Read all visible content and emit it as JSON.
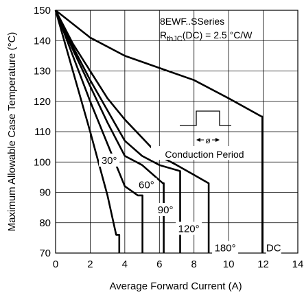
{
  "chart_data": {
    "type": "line",
    "xlabel": "Average Forward Current (A)",
    "ylabel": "Maximum Allowable Case Temperature (°C)",
    "xlim": [
      0,
      14
    ],
    "ylim": [
      70,
      150
    ],
    "x_ticks": [
      "0",
      "2",
      "4",
      "6",
      "8",
      "10",
      "12",
      "14"
    ],
    "y_ticks": [
      "70",
      "80",
      "90",
      "100",
      "110",
      "120",
      "130",
      "140",
      "150"
    ],
    "grid": true,
    "annotation": {
      "series_line": "8EWF..SSeries",
      "rth_symbol": "R",
      "rth_sub": "thJC",
      "rth_value": "(DC) = 2.5 °C/W",
      "conduction_label": "Conduction Period",
      "phi_symbol": "ø"
    },
    "series": [
      {
        "name": "30°",
        "points": [
          [
            0,
            150
          ],
          [
            1,
            130
          ],
          [
            2,
            110
          ],
          [
            3,
            89
          ],
          [
            3.5,
            76
          ],
          [
            3.68,
            76
          ],
          [
            3.68,
            70
          ]
        ]
      },
      {
        "name": "60°",
        "points": [
          [
            0,
            150
          ],
          [
            1,
            135
          ],
          [
            2,
            120
          ],
          [
            3,
            106
          ],
          [
            4,
            92
          ],
          [
            4.75,
            89
          ],
          [
            5.02,
            89
          ],
          [
            5.02,
            70
          ]
        ]
      },
      {
        "name": "90°",
        "points": [
          [
            0,
            150
          ],
          [
            1,
            137
          ],
          [
            2,
            125
          ],
          [
            3,
            113
          ],
          [
            4,
            102
          ],
          [
            5,
            99
          ],
          [
            6.2,
            93
          ],
          [
            6.25,
            93
          ],
          [
            6.25,
            70
          ]
        ]
      },
      {
        "name": "120°",
        "points": [
          [
            0,
            150
          ],
          [
            1,
            138
          ],
          [
            2,
            127
          ],
          [
            3,
            117
          ],
          [
            4,
            107
          ],
          [
            5,
            102
          ],
          [
            6,
            99
          ],
          [
            7.2,
            97
          ],
          [
            7.2,
            70
          ]
        ]
      },
      {
        "name": "180°",
        "points": [
          [
            0,
            150
          ],
          [
            1,
            139
          ],
          [
            2,
            130
          ],
          [
            3,
            121
          ],
          [
            4,
            114
          ],
          [
            5,
            108
          ],
          [
            6,
            102
          ],
          [
            7,
            99
          ],
          [
            8.85,
            93
          ],
          [
            8.85,
            70
          ]
        ]
      },
      {
        "name": "DC",
        "points": [
          [
            0,
            150
          ],
          [
            2,
            141
          ],
          [
            4,
            135
          ],
          [
            6,
            131
          ],
          [
            8,
            127
          ],
          [
            10,
            121
          ],
          [
            11.9,
            115
          ],
          [
            11.95,
            115
          ],
          [
            11.95,
            70
          ]
        ]
      }
    ],
    "curve_labels": [
      {
        "text": "30°",
        "at": [
          3.1,
          99.4
        ]
      },
      {
        "text": "60°",
        "at": [
          5.25,
          91.4
        ]
      },
      {
        "text": "90°",
        "at": [
          6.35,
          83.1
        ]
      },
      {
        "text": "120°",
        "at": [
          7.7,
          76.9
        ]
      },
      {
        "text": "180°",
        "at": [
          9.8,
          70.6
        ]
      },
      {
        "text": "DC",
        "at": [
          12.6,
          70.6
        ]
      }
    ]
  }
}
